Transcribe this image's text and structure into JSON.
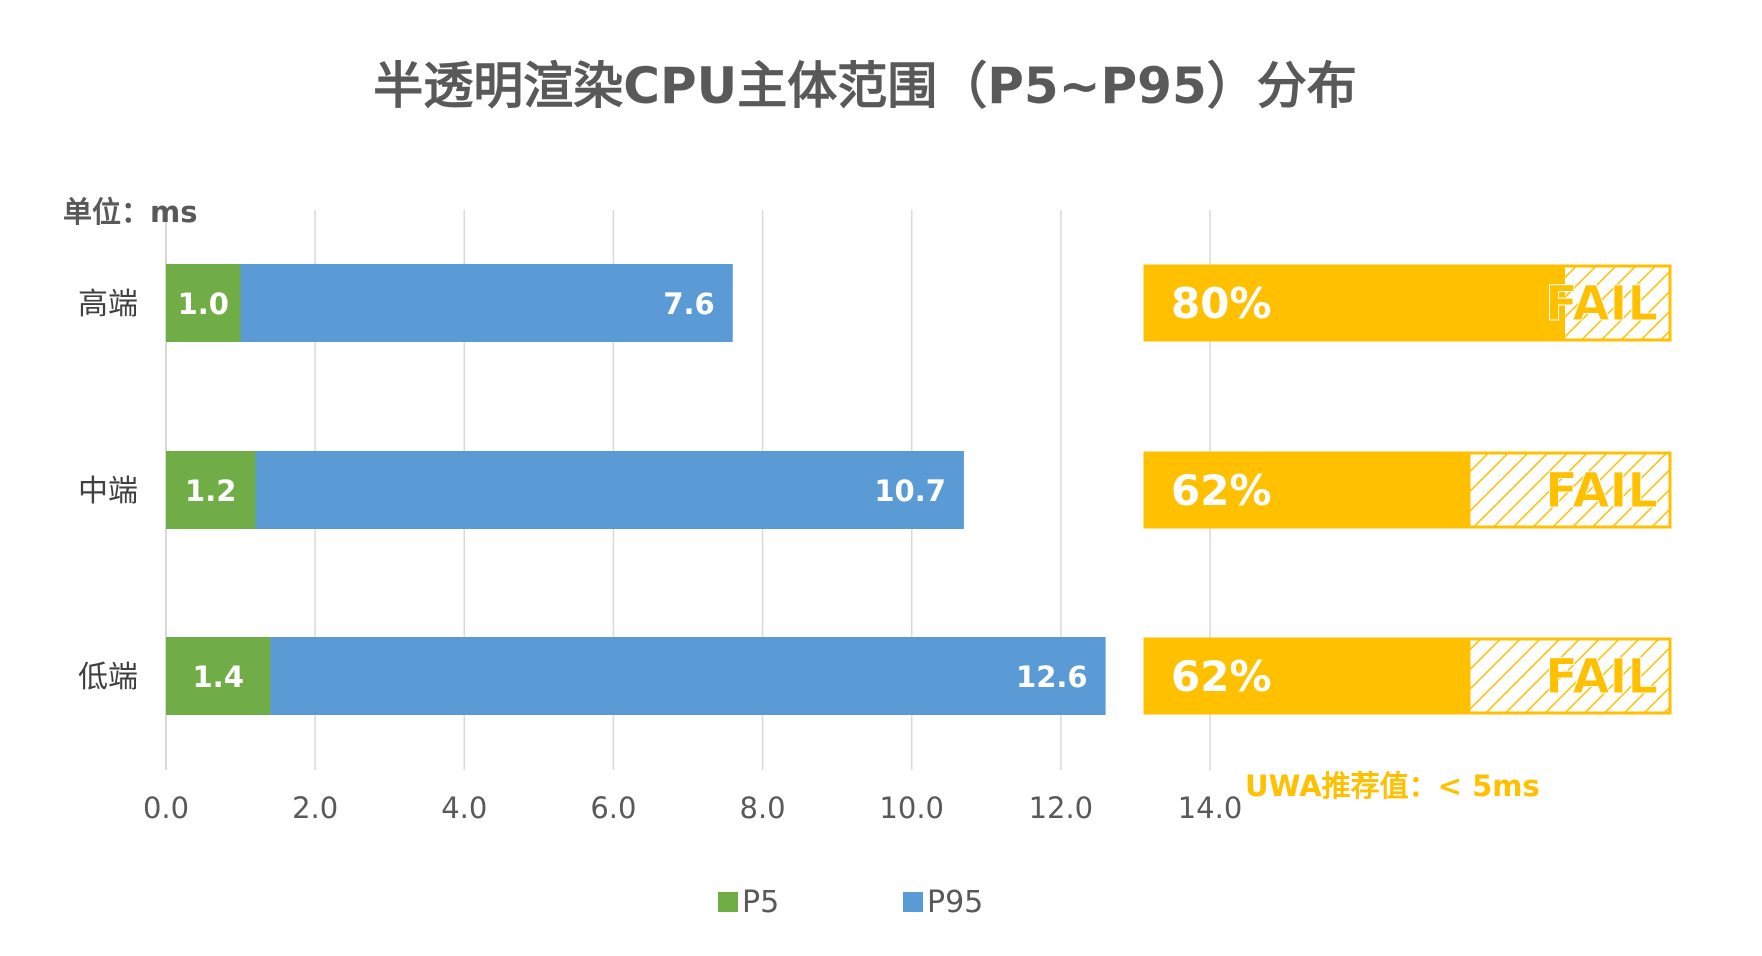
{
  "chart_data": {
    "type": "bar",
    "orientation": "horizontal",
    "stacked": true,
    "title": "半透明渲染CPU主体范围（P5~P95）分布",
    "unit_label": "单位：ms",
    "categories": [
      "高端",
      "中端",
      "低端"
    ],
    "series": [
      {
        "name": "P5",
        "color": "#70ad47",
        "values": [
          1.0,
          1.2,
          1.4
        ],
        "labels": [
          "1.0",
          "1.2",
          "1.4"
        ]
      },
      {
        "name": "P95",
        "color": "#5b9bd5",
        "values": [
          7.6,
          10.7,
          12.6
        ],
        "labels": [
          "7.6",
          "10.7",
          "12.6"
        ]
      }
    ],
    "xlim": [
      0,
      14
    ],
    "x_ticks": [
      "0.0",
      "2.0",
      "4.0",
      "6.0",
      "8.0",
      "10.0",
      "12.0",
      "14.0"
    ],
    "grid": true,
    "legend_position": "bottom",
    "fail_panel": {
      "color": "#ffc000",
      "rows": [
        {
          "percent": 0.8,
          "percent_label": "80%",
          "status": "FAIL"
        },
        {
          "percent": 0.62,
          "percent_label": "62%",
          "status": "FAIL"
        },
        {
          "percent": 0.62,
          "percent_label": "62%",
          "status": "FAIL"
        }
      ],
      "recommendation": "UWA推荐值：< 5ms"
    }
  }
}
